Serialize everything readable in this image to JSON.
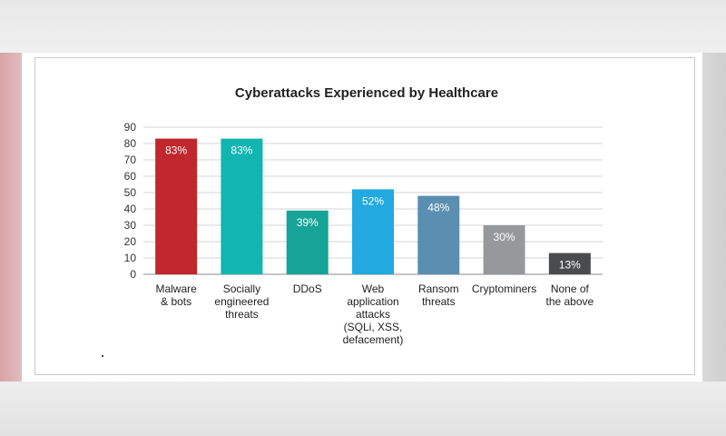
{
  "chart_data": {
    "type": "bar",
    "title": "Cyberattacks Experienced by Healthcare",
    "xlabel": "",
    "ylabel": "",
    "ylim": [
      0,
      90
    ],
    "yticks": [
      0,
      10,
      20,
      30,
      40,
      50,
      60,
      70,
      80,
      90
    ],
    "grid": true,
    "legend": "none",
    "categories": [
      [
        "Malware",
        "& bots"
      ],
      [
        "Socially",
        "engineered",
        "threats"
      ],
      [
        "DDoS"
      ],
      [
        "Web",
        "application",
        "attacks",
        "(SQLi, XSS,",
        "defacement)"
      ],
      [
        "Ransom",
        "threats"
      ],
      [
        "Cryptominers"
      ],
      [
        "None of",
        "the above"
      ]
    ],
    "values": [
      83,
      83,
      39,
      52,
      48,
      30,
      13
    ],
    "data_labels": [
      "83%",
      "83%",
      "39%",
      "52%",
      "48%",
      "30%",
      "13%"
    ],
    "colors": [
      "#c1272d",
      "#12b5b0",
      "#17a397",
      "#22a9e0",
      "#5b8fb2",
      "#96999c",
      "#4a4b4d"
    ]
  }
}
